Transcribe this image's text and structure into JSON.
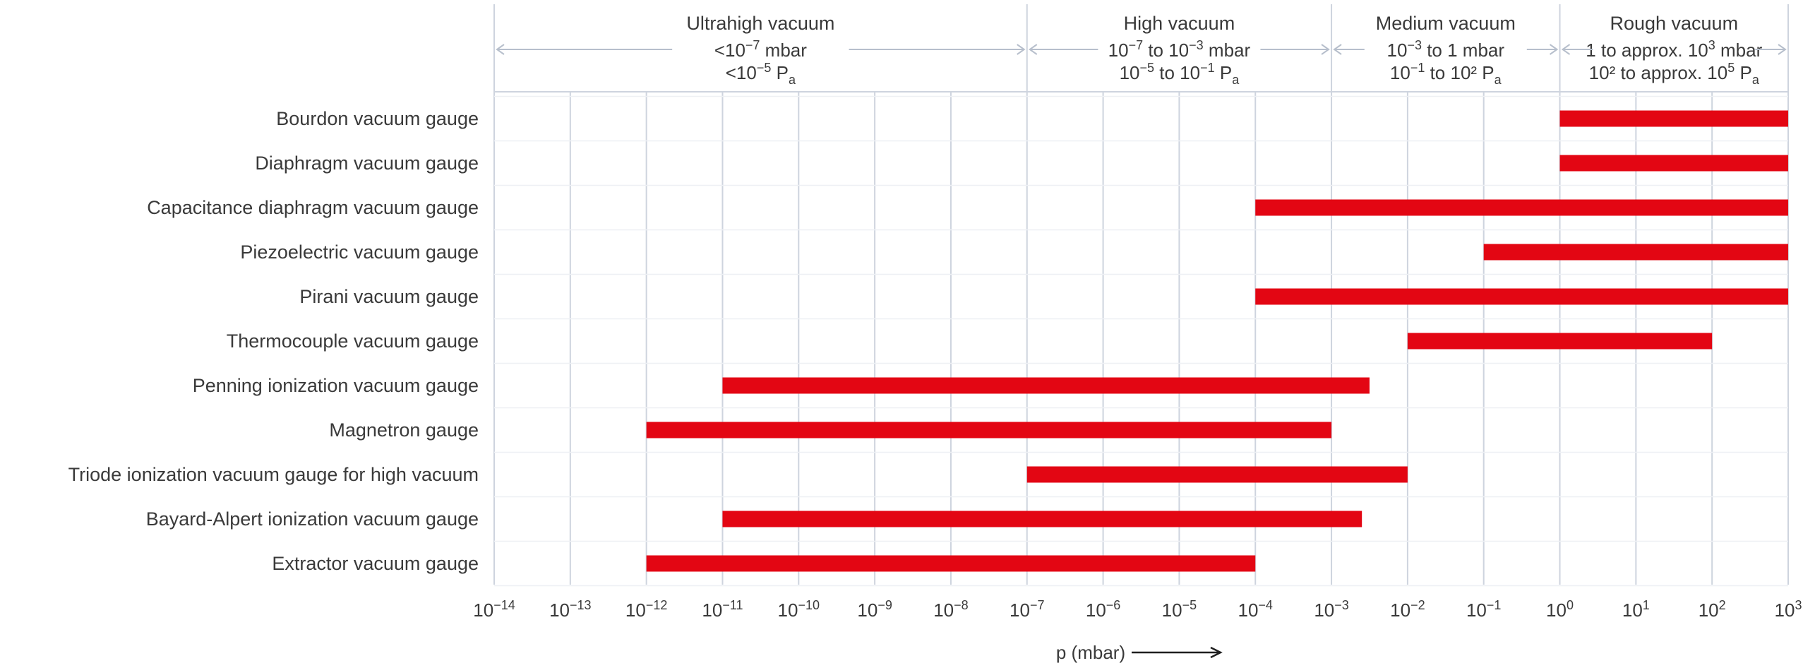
{
  "chart_data": {
    "type": "bar",
    "orientation": "horizontal-range",
    "x_scale": "log10",
    "xlabel": "p (mbar)",
    "xlim_exponents": [
      -14,
      3
    ],
    "grid": true,
    "x_ticks": [
      {
        "base": "10",
        "exp": "−14"
      },
      {
        "base": "10",
        "exp": "−13"
      },
      {
        "base": "10",
        "exp": "−12"
      },
      {
        "base": "10",
        "exp": "−11"
      },
      {
        "base": "10",
        "exp": "−10"
      },
      {
        "base": "10",
        "exp": "−9"
      },
      {
        "base": "10",
        "exp": "−8"
      },
      {
        "base": "10",
        "exp": "−7"
      },
      {
        "base": "10",
        "exp": "−6"
      },
      {
        "base": "10",
        "exp": "−5"
      },
      {
        "base": "10",
        "exp": "−4"
      },
      {
        "base": "10",
        "exp": "−3"
      },
      {
        "base": "10",
        "exp": "−2"
      },
      {
        "base": "10",
        "exp": "−1"
      },
      {
        "base": "10",
        "exp": "0"
      },
      {
        "base": "10",
        "exp": "1"
      },
      {
        "base": "10",
        "exp": "2"
      },
      {
        "base": "10",
        "exp": "3"
      }
    ],
    "regions": [
      {
        "name": "Ultrahigh vacuum",
        "from_exp": -14,
        "to_exp": -7,
        "line2": [
          {
            "t": "<10"
          },
          {
            "t": "−7",
            "s": "sup"
          },
          {
            "t": " mbar"
          }
        ],
        "line3": [
          {
            "t": "<10"
          },
          {
            "t": "−5",
            "s": "sup"
          },
          {
            "t": " P"
          },
          {
            "t": "a",
            "s": "sub"
          }
        ]
      },
      {
        "name": "High vacuum",
        "from_exp": -7,
        "to_exp": -3,
        "line2": [
          {
            "t": "10"
          },
          {
            "t": "−7",
            "s": "sup"
          },
          {
            "t": " to 10"
          },
          {
            "t": "−3",
            "s": "sup"
          },
          {
            "t": " mbar"
          }
        ],
        "line3": [
          {
            "t": "10"
          },
          {
            "t": "−5",
            "s": "sup"
          },
          {
            "t": " to 10"
          },
          {
            "t": "−1",
            "s": "sup"
          },
          {
            "t": " P"
          },
          {
            "t": "a",
            "s": "sub"
          }
        ]
      },
      {
        "name": "Medium vacuum",
        "from_exp": -3,
        "to_exp": 0,
        "line2": [
          {
            "t": "10"
          },
          {
            "t": "−3",
            "s": "sup"
          },
          {
            "t": " to 1 mbar"
          }
        ],
        "line3": [
          {
            "t": "10"
          },
          {
            "t": "−1",
            "s": "sup"
          },
          {
            "t": " to 10² P"
          },
          {
            "t": "a",
            "s": "sub"
          }
        ]
      },
      {
        "name": "Rough vacuum",
        "from_exp": 0,
        "to_exp": 3,
        "line2": [
          {
            "t": "1 to approx. 10"
          },
          {
            "t": "3",
            "s": "sup"
          },
          {
            "t": " mbar"
          }
        ],
        "line3": [
          {
            "t": "10² to approx. 10"
          },
          {
            "t": "5",
            "s": "sup"
          },
          {
            "t": " P"
          },
          {
            "t": "a",
            "s": "sub"
          }
        ]
      }
    ],
    "series": [
      {
        "category": "Bourdon vacuum gauge",
        "from_exp": 0,
        "to_exp": 3
      },
      {
        "category": "Diaphragm vacuum gauge",
        "from_exp": 0,
        "to_exp": 3
      },
      {
        "category": "Capacitance diaphragm vacuum gauge",
        "from_exp": -4,
        "to_exp": 3
      },
      {
        "category": "Piezoelectric vacuum gauge",
        "from_exp": -1,
        "to_exp": 3
      },
      {
        "category": "Pirani vacuum gauge",
        "from_exp": -4,
        "to_exp": 3
      },
      {
        "category": "Thermocouple vacuum gauge",
        "from_exp": -2,
        "to_exp": 2
      },
      {
        "category": "Penning ionization vacuum gauge",
        "from_exp": -11,
        "to_exp": -2.5
      },
      {
        "category": "Magnetron gauge",
        "from_exp": -12,
        "to_exp": -3
      },
      {
        "category": "Triode ionization vacuum gauge for high vacuum",
        "from_exp": -7,
        "to_exp": -2
      },
      {
        "category": "Bayard-Alpert ionization vacuum gauge",
        "from_exp": -11,
        "to_exp": -2.6
      },
      {
        "category": "Extractor vacuum gauge",
        "from_exp": -12,
        "to_exp": -4
      }
    ],
    "bar_color": "#e30613",
    "grid_color": "#ced4de",
    "text_color": "#3a3a3a"
  }
}
